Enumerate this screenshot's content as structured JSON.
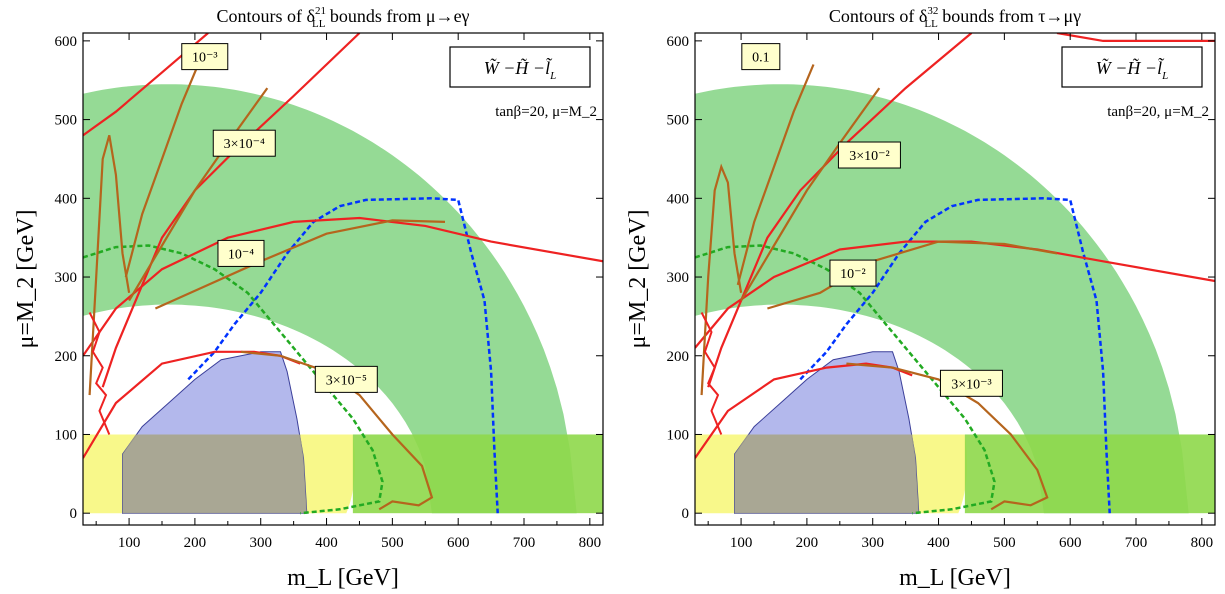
{
  "chart_data": [
    {
      "type": "contour",
      "title": "Contours of δ₂₁ bounds from μ→eγ",
      "title_parts": {
        "prefix": "Contours of δ",
        "sup": "21",
        "sub": "LL",
        "suffix": " bounds from μ→eγ"
      },
      "xlabel": "m_L [GeV]",
      "ylabel": "μ=M_2 [GeV]",
      "xlim": [
        30,
        820
      ],
      "ylim": [
        -15,
        610
      ],
      "xticks": [
        100,
        200,
        300,
        400,
        500,
        600,
        700,
        800
      ],
      "yticks": [
        0,
        100,
        200,
        300,
        400,
        500,
        600
      ],
      "legend_box": "W̃−H̃−l̃_L",
      "legend_parts": {
        "main": "W̃ −H̃ −l̃",
        "sub": "L"
      },
      "annotation": "tanβ=20, μ=M_2",
      "contour_labels": [
        {
          "text": "10⁻³",
          "x": 215,
          "y": 580
        },
        {
          "text": "3×10⁻⁴",
          "x": 275,
          "y": 470
        },
        {
          "text": "10⁻⁴",
          "x": 270,
          "y": 330
        },
        {
          "text": "3×10⁻⁵",
          "x": 430,
          "y": 170
        }
      ],
      "regions": {
        "green_band": {
          "color": "#8fd88f",
          "inner_radius_at_0": 265,
          "outer_radius_at_0": 545,
          "center_x": 160
        },
        "yellow_band": {
          "color": "#f8f88a",
          "y_range": [
            0,
            100
          ]
        },
        "blue_region": {
          "color": "#9aa0e6",
          "x_range": [
            90,
            370
          ],
          "y_max": 205
        },
        "blue_dashed": {
          "color": "#0033ff",
          "x_max": 660,
          "y_max": 400
        },
        "green_dashed": {
          "color": "#22aa22",
          "peak": [
            120,
            340
          ],
          "x_max": 495
        }
      }
    },
    {
      "type": "contour",
      "title": "Contours of δ₃₂ bounds from τ→μγ",
      "title_parts": {
        "prefix": "Contours of δ",
        "sup": "32",
        "sub": "LL",
        "suffix": " bounds from τ→μγ"
      },
      "xlabel": "m_L [GeV]",
      "ylabel": "μ=M_2 [GeV]",
      "xlim": [
        30,
        820
      ],
      "ylim": [
        -15,
        610
      ],
      "xticks": [
        100,
        200,
        300,
        400,
        500,
        600,
        700,
        800
      ],
      "yticks": [
        0,
        100,
        200,
        300,
        400,
        500,
        600
      ],
      "legend_box": "W̃−H̃−l̃_L",
      "legend_parts": {
        "main": "W̃ −H̃ −l̃",
        "sub": "L"
      },
      "annotation": "tanβ=20, μ=M_2",
      "contour_labels": [
        {
          "text": "0.1",
          "x": 130,
          "y": 580
        },
        {
          "text": "3×10⁻²",
          "x": 295,
          "y": 455
        },
        {
          "text": "10⁻²",
          "x": 270,
          "y": 305
        },
        {
          "text": "3×10⁻³",
          "x": 450,
          "y": 165
        }
      ],
      "regions": {
        "green_band": {
          "color": "#8fd88f",
          "inner_radius_at_0": 265,
          "outer_radius_at_0": 545,
          "center_x": 160
        },
        "yellow_band": {
          "color": "#f8f88a",
          "y_range": [
            0,
            100
          ]
        },
        "blue_region": {
          "color": "#9aa0e6",
          "x_range": [
            90,
            370
          ],
          "y_max": 205
        },
        "blue_dashed": {
          "color": "#0033ff",
          "x_max": 660,
          "y_max": 400
        },
        "green_dashed": {
          "color": "#22aa22",
          "peak": [
            120,
            340
          ],
          "x_max": 495
        }
      }
    }
  ]
}
